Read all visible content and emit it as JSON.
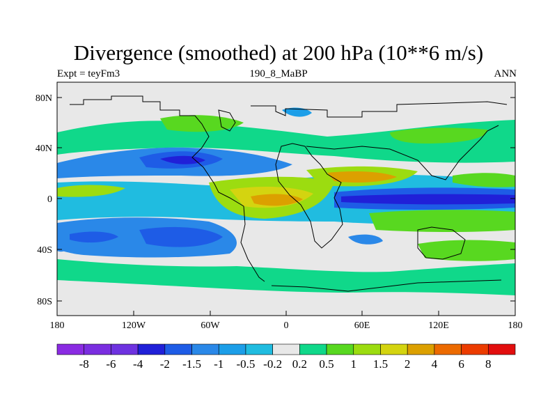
{
  "map": {
    "title": "Divergence (smoothed) at 200 hPa (10**6 m/s)",
    "subtitle_left": "Expt = teyFm3",
    "subtitle_center": "190_8_MaBP",
    "subtitle_right": "ANN",
    "x_ticks": [
      "180",
      "120W",
      "60W",
      "0",
      "60E",
      "120E",
      "180"
    ],
    "y_ticks": [
      "80N",
      "40N",
      "0",
      "40S",
      "80S"
    ]
  },
  "colorbar": {
    "labels": [
      "-8",
      "-6",
      "-4",
      "-2",
      "-1.5",
      "-1",
      "-0.5",
      "-0.2",
      "0.2",
      "0.5",
      "1",
      "1.5",
      "2",
      "4",
      "6",
      "8"
    ],
    "colors": [
      "#8a2be2",
      "#7a2ee0",
      "#6e32e0",
      "#2020d8",
      "#1e5ce6",
      "#2a88e8",
      "#1c9ee8",
      "#20bce0",
      "#e8e8e8",
      "#10d88a",
      "#58d820",
      "#9cdc10",
      "#d4d410",
      "#dca000",
      "#ec6a00",
      "#ec3c00",
      "#e20e0e"
    ]
  },
  "colors": {
    "background": "#e8e8e8",
    "coastline": "#000000"
  }
}
